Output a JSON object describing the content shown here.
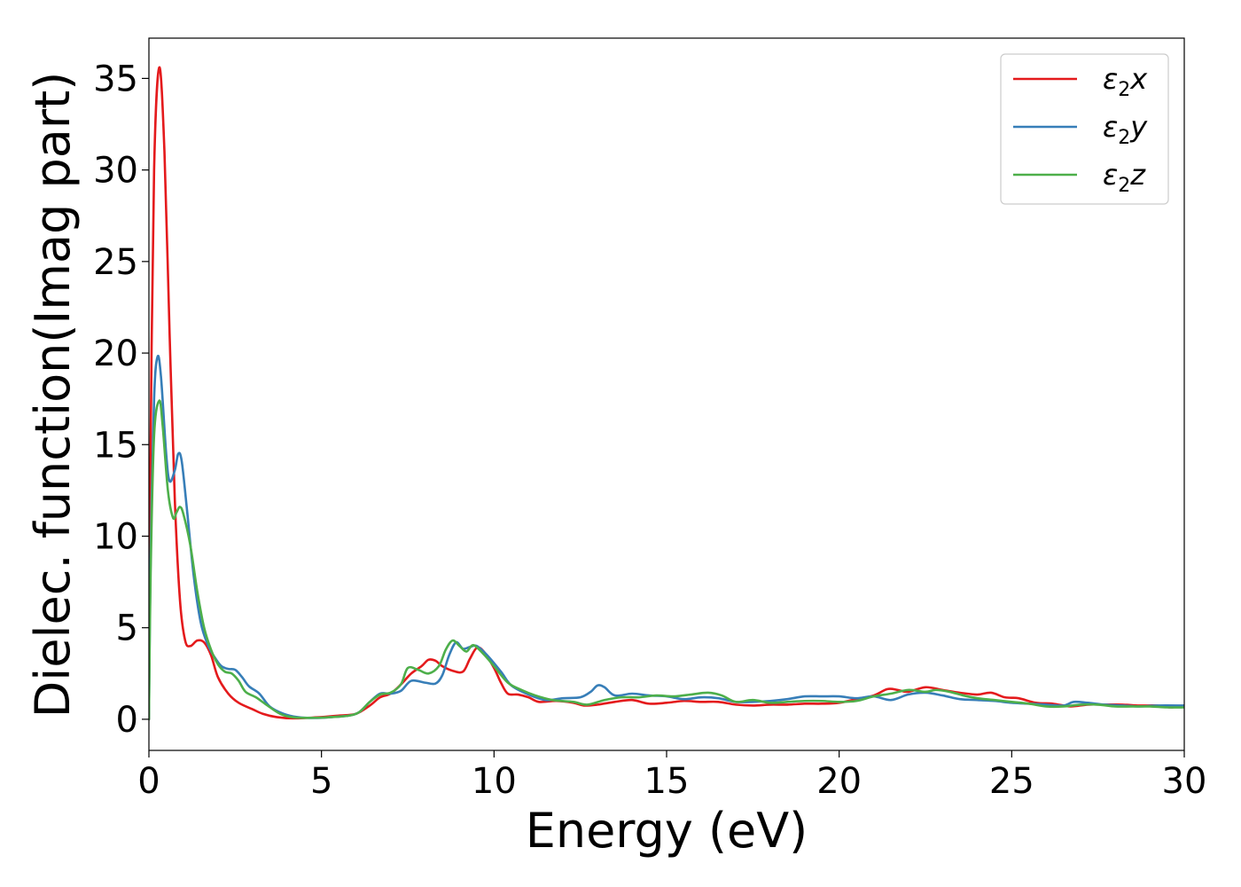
{
  "chart_data": {
    "type": "line",
    "xlabel": "Energy (eV)",
    "ylabel": "Dielec. function(Imag part)",
    "xlim": [
      0,
      30
    ],
    "ylim": [
      -1.7,
      37.2
    ],
    "xticks": [
      0,
      5,
      10,
      15,
      20,
      25,
      30
    ],
    "yticks": [
      0,
      5,
      10,
      15,
      20,
      25,
      30,
      35
    ],
    "grid": false,
    "legend_position": "top-right",
    "series": [
      {
        "name": "x",
        "legend_main": "ε",
        "legend_sub": "2",
        "legend_var": "x",
        "color": "#e41a1c",
        "points": [
          [
            0,
            0
          ],
          [
            0.05,
            15
          ],
          [
            0.15,
            30
          ],
          [
            0.3,
            35.6
          ],
          [
            0.45,
            31
          ],
          [
            0.6,
            21
          ],
          [
            0.75,
            12
          ],
          [
            0.9,
            6.5
          ],
          [
            1.05,
            4.3
          ],
          [
            1.2,
            4.0
          ],
          [
            1.4,
            4.3
          ],
          [
            1.6,
            4.2
          ],
          [
            1.8,
            3.5
          ],
          [
            2.0,
            2.3
          ],
          [
            2.3,
            1.4
          ],
          [
            2.6,
            0.9
          ],
          [
            3.0,
            0.55
          ],
          [
            3.3,
            0.3
          ],
          [
            3.7,
            0.12
          ],
          [
            4.2,
            0.05
          ],
          [
            5.0,
            0.12
          ],
          [
            5.5,
            0.2
          ],
          [
            6.0,
            0.3
          ],
          [
            6.4,
            0.75
          ],
          [
            6.7,
            1.2
          ],
          [
            7.0,
            1.4
          ],
          [
            7.3,
            1.9
          ],
          [
            7.6,
            2.5
          ],
          [
            7.9,
            2.9
          ],
          [
            8.1,
            3.25
          ],
          [
            8.3,
            3.2
          ],
          [
            8.5,
            2.9
          ],
          [
            8.8,
            2.65
          ],
          [
            9.1,
            2.6
          ],
          [
            9.3,
            3.3
          ],
          [
            9.5,
            3.9
          ],
          [
            9.7,
            3.7
          ],
          [
            10.0,
            2.8
          ],
          [
            10.2,
            2.0
          ],
          [
            10.4,
            1.4
          ],
          [
            10.7,
            1.35
          ],
          [
            11.0,
            1.2
          ],
          [
            11.3,
            0.95
          ],
          [
            11.8,
            1.0
          ],
          [
            12.3,
            0.9
          ],
          [
            12.6,
            0.75
          ],
          [
            13.0,
            0.8
          ],
          [
            13.5,
            0.95
          ],
          [
            14.0,
            1.05
          ],
          [
            14.5,
            0.85
          ],
          [
            15.0,
            0.9
          ],
          [
            15.5,
            1.0
          ],
          [
            16.0,
            0.95
          ],
          [
            16.5,
            0.95
          ],
          [
            17.0,
            0.8
          ],
          [
            17.5,
            0.75
          ],
          [
            18.0,
            0.8
          ],
          [
            18.5,
            0.8
          ],
          [
            19.0,
            0.85
          ],
          [
            19.5,
            0.85
          ],
          [
            20.0,
            0.9
          ],
          [
            20.5,
            1.1
          ],
          [
            21.0,
            1.3
          ],
          [
            21.4,
            1.65
          ],
          [
            21.7,
            1.6
          ],
          [
            22.0,
            1.5
          ],
          [
            22.5,
            1.75
          ],
          [
            23.0,
            1.6
          ],
          [
            23.5,
            1.45
          ],
          [
            24.0,
            1.35
          ],
          [
            24.4,
            1.45
          ],
          [
            24.8,
            1.2
          ],
          [
            25.2,
            1.15
          ],
          [
            25.7,
            0.9
          ],
          [
            26.2,
            0.85
          ],
          [
            26.7,
            0.7
          ],
          [
            27.2,
            0.8
          ],
          [
            27.7,
            0.8
          ],
          [
            28.2,
            0.8
          ],
          [
            28.7,
            0.75
          ],
          [
            29.2,
            0.75
          ],
          [
            29.6,
            0.65
          ],
          [
            30.0,
            0.75
          ]
        ]
      },
      {
        "name": "y",
        "legend_main": "ε",
        "legend_sub": "2",
        "legend_var": "y",
        "color": "#377eb8",
        "points": [
          [
            0,
            0
          ],
          [
            0.05,
            9
          ],
          [
            0.15,
            17.5
          ],
          [
            0.25,
            19.8
          ],
          [
            0.35,
            18.7
          ],
          [
            0.5,
            14.5
          ],
          [
            0.6,
            13.0
          ],
          [
            0.75,
            13.6
          ],
          [
            0.85,
            14.5
          ],
          [
            0.95,
            14.1
          ],
          [
            1.1,
            11.5
          ],
          [
            1.3,
            7.8
          ],
          [
            1.5,
            5.3
          ],
          [
            1.7,
            4.1
          ],
          [
            1.9,
            3.4
          ],
          [
            2.1,
            2.9
          ],
          [
            2.3,
            2.75
          ],
          [
            2.5,
            2.7
          ],
          [
            2.7,
            2.3
          ],
          [
            2.9,
            1.8
          ],
          [
            3.2,
            1.4
          ],
          [
            3.5,
            0.7
          ],
          [
            3.9,
            0.3
          ],
          [
            4.3,
            0.12
          ],
          [
            4.8,
            0.07
          ],
          [
            5.3,
            0.12
          ],
          [
            5.8,
            0.2
          ],
          [
            6.1,
            0.4
          ],
          [
            6.4,
            0.95
          ],
          [
            6.7,
            1.4
          ],
          [
            7.0,
            1.4
          ],
          [
            7.3,
            1.55
          ],
          [
            7.6,
            2.1
          ],
          [
            8.0,
            2.0
          ],
          [
            8.3,
            1.95
          ],
          [
            8.5,
            2.4
          ],
          [
            8.7,
            3.5
          ],
          [
            8.9,
            4.2
          ],
          [
            9.1,
            3.85
          ],
          [
            9.3,
            3.95
          ],
          [
            9.5,
            4.0
          ],
          [
            9.8,
            3.5
          ],
          [
            10.2,
            2.6
          ],
          [
            10.5,
            1.85
          ],
          [
            11.0,
            1.35
          ],
          [
            11.5,
            1.05
          ],
          [
            12.0,
            1.15
          ],
          [
            12.5,
            1.2
          ],
          [
            12.8,
            1.5
          ],
          [
            13.0,
            1.85
          ],
          [
            13.2,
            1.75
          ],
          [
            13.5,
            1.3
          ],
          [
            14.0,
            1.4
          ],
          [
            14.5,
            1.3
          ],
          [
            15.0,
            1.25
          ],
          [
            15.5,
            1.1
          ],
          [
            16.0,
            1.2
          ],
          [
            16.5,
            1.15
          ],
          [
            17.0,
            0.95
          ],
          [
            17.5,
            0.95
          ],
          [
            18.0,
            1.0
          ],
          [
            18.5,
            1.1
          ],
          [
            19.0,
            1.25
          ],
          [
            19.5,
            1.25
          ],
          [
            20.0,
            1.25
          ],
          [
            20.5,
            1.15
          ],
          [
            21.0,
            1.25
          ],
          [
            21.5,
            1.05
          ],
          [
            22.0,
            1.35
          ],
          [
            22.5,
            1.45
          ],
          [
            23.0,
            1.3
          ],
          [
            23.5,
            1.1
          ],
          [
            24.0,
            1.05
          ],
          [
            24.5,
            1.0
          ],
          [
            25.0,
            0.9
          ],
          [
            25.5,
            0.85
          ],
          [
            26.0,
            0.8
          ],
          [
            26.5,
            0.75
          ],
          [
            26.8,
            0.95
          ],
          [
            27.2,
            0.9
          ],
          [
            27.7,
            0.8
          ],
          [
            28.2,
            0.75
          ],
          [
            28.7,
            0.7
          ],
          [
            29.2,
            0.75
          ],
          [
            30.0,
            0.75
          ]
        ]
      },
      {
        "name": "z",
        "legend_main": "ε",
        "legend_sub": "2",
        "legend_var": "z",
        "color": "#4daf4a",
        "points": [
          [
            0,
            0
          ],
          [
            0.05,
            8
          ],
          [
            0.15,
            15.5
          ],
          [
            0.3,
            17.4
          ],
          [
            0.4,
            16.0
          ],
          [
            0.55,
            12.5
          ],
          [
            0.7,
            11.0
          ],
          [
            0.8,
            11.3
          ],
          [
            0.9,
            11.6
          ],
          [
            1.0,
            11.2
          ],
          [
            1.2,
            9.5
          ],
          [
            1.4,
            7.0
          ],
          [
            1.6,
            5.0
          ],
          [
            1.8,
            3.8
          ],
          [
            2.0,
            3.0
          ],
          [
            2.2,
            2.6
          ],
          [
            2.4,
            2.5
          ],
          [
            2.6,
            2.1
          ],
          [
            2.8,
            1.5
          ],
          [
            3.1,
            1.2
          ],
          [
            3.4,
            0.8
          ],
          [
            3.8,
            0.3
          ],
          [
            4.2,
            0.1
          ],
          [
            4.8,
            0.08
          ],
          [
            5.3,
            0.12
          ],
          [
            5.8,
            0.2
          ],
          [
            6.1,
            0.4
          ],
          [
            6.4,
            0.95
          ],
          [
            6.7,
            1.35
          ],
          [
            7.0,
            1.45
          ],
          [
            7.3,
            1.9
          ],
          [
            7.5,
            2.8
          ],
          [
            7.8,
            2.7
          ],
          [
            8.1,
            2.5
          ],
          [
            8.4,
            2.9
          ],
          [
            8.6,
            3.8
          ],
          [
            8.8,
            4.3
          ],
          [
            9.0,
            4.0
          ],
          [
            9.2,
            3.7
          ],
          [
            9.4,
            4.05
          ],
          [
            9.7,
            3.55
          ],
          [
            10.0,
            2.9
          ],
          [
            10.4,
            2.0
          ],
          [
            10.8,
            1.6
          ],
          [
            11.2,
            1.3
          ],
          [
            11.7,
            1.05
          ],
          [
            12.3,
            0.95
          ],
          [
            12.7,
            0.8
          ],
          [
            13.2,
            1.05
          ],
          [
            13.7,
            1.2
          ],
          [
            14.2,
            1.2
          ],
          [
            14.7,
            1.3
          ],
          [
            15.2,
            1.25
          ],
          [
            15.7,
            1.35
          ],
          [
            16.2,
            1.45
          ],
          [
            16.6,
            1.3
          ],
          [
            17.0,
            0.95
          ],
          [
            17.5,
            1.05
          ],
          [
            18.0,
            0.9
          ],
          [
            18.5,
            0.95
          ],
          [
            19.0,
            1.0
          ],
          [
            19.5,
            1.0
          ],
          [
            20.0,
            0.95
          ],
          [
            20.5,
            1.0
          ],
          [
            21.0,
            1.25
          ],
          [
            21.5,
            1.4
          ],
          [
            22.0,
            1.6
          ],
          [
            22.5,
            1.5
          ],
          [
            22.8,
            1.6
          ],
          [
            23.2,
            1.5
          ],
          [
            23.6,
            1.3
          ],
          [
            24.0,
            1.15
          ],
          [
            24.5,
            1.05
          ],
          [
            25.0,
            0.95
          ],
          [
            25.5,
            0.85
          ],
          [
            26.0,
            0.7
          ],
          [
            26.5,
            0.7
          ],
          [
            27.0,
            0.8
          ],
          [
            27.5,
            0.8
          ],
          [
            28.0,
            0.7
          ],
          [
            28.5,
            0.7
          ],
          [
            29.0,
            0.7
          ],
          [
            29.5,
            0.65
          ],
          [
            30.0,
            0.65
          ]
        ]
      }
    ]
  }
}
